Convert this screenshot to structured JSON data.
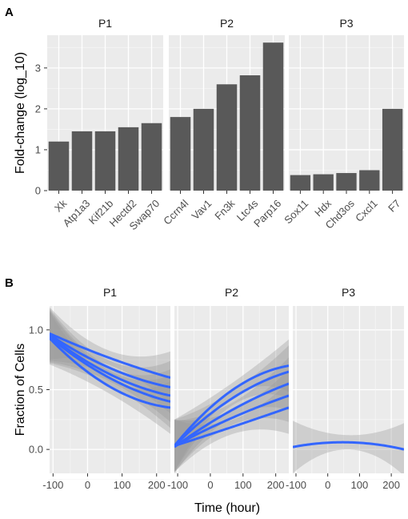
{
  "chart_data": [
    {
      "type": "bar",
      "panel_label": "A",
      "ylabel": "Fold-change (log_10)",
      "ylim": [
        0,
        3.8
      ],
      "yticks": [
        0,
        1,
        2,
        3
      ],
      "grid": true,
      "facets": [
        {
          "title": "P1",
          "categories": [
            "Xk",
            "Atp1a3",
            "Kif21b",
            "Hectd2",
            "Swap70"
          ],
          "values": [
            1.2,
            1.45,
            1.45,
            1.55,
            1.65
          ]
        },
        {
          "title": "P2",
          "categories": [
            "Ccrn4l",
            "Vav1",
            "Fn3k",
            "Ltc4s",
            "Parp16"
          ],
          "values": [
            1.8,
            2.0,
            2.6,
            2.82,
            3.62
          ]
        },
        {
          "title": "P3",
          "categories": [
            "Sox11",
            "Hdx",
            "Chd3os",
            "Cxcl1",
            "F7"
          ],
          "values": [
            0.38,
            0.4,
            0.43,
            0.5,
            2.0
          ]
        }
      ]
    },
    {
      "type": "line",
      "panel_label": "B",
      "xlabel": "Time (hour)",
      "ylabel": "Fraction of Cells",
      "xlim": [
        -110,
        240
      ],
      "ylim": [
        -0.2,
        1.2
      ],
      "xticks": [
        -100,
        0,
        100,
        200
      ],
      "xtick_labels": [
        "-100",
        "0",
        "100",
        "200"
      ],
      "yticks": [
        0.0,
        0.5,
        1.0
      ],
      "ytick_labels": [
        "0.0",
        "0.5",
        "1.0"
      ],
      "line_color": "#3366ff",
      "band_color": "#999999",
      "grid": true,
      "facets": [
        {
          "title": "P1",
          "x": [
            -110,
            50,
            240
          ],
          "series": [
            {
              "values": [
                0.97,
                0.78,
                0.6
              ]
            },
            {
              "values": [
                0.96,
                0.7,
                0.52
              ]
            },
            {
              "values": [
                0.95,
                0.65,
                0.45
              ]
            },
            {
              "values": [
                0.94,
                0.62,
                0.4
              ]
            },
            {
              "values": [
                0.93,
                0.55,
                0.35
              ]
            }
          ]
        },
        {
          "title": "P2",
          "x": [
            -110,
            80,
            240
          ],
          "series": [
            {
              "values": [
                0.03,
                0.52,
                0.7
              ]
            },
            {
              "values": [
                0.03,
                0.45,
                0.65
              ]
            },
            {
              "values": [
                0.02,
                0.35,
                0.55
              ]
            },
            {
              "values": [
                0.03,
                0.28,
                0.45
              ]
            },
            {
              "values": [
                0.03,
                0.2,
                0.35
              ]
            }
          ]
        },
        {
          "title": "P3",
          "x": [
            -110,
            50,
            240
          ],
          "series": [
            {
              "values": [
                0.02,
                0.06,
                0.0
              ]
            }
          ]
        }
      ]
    }
  ]
}
